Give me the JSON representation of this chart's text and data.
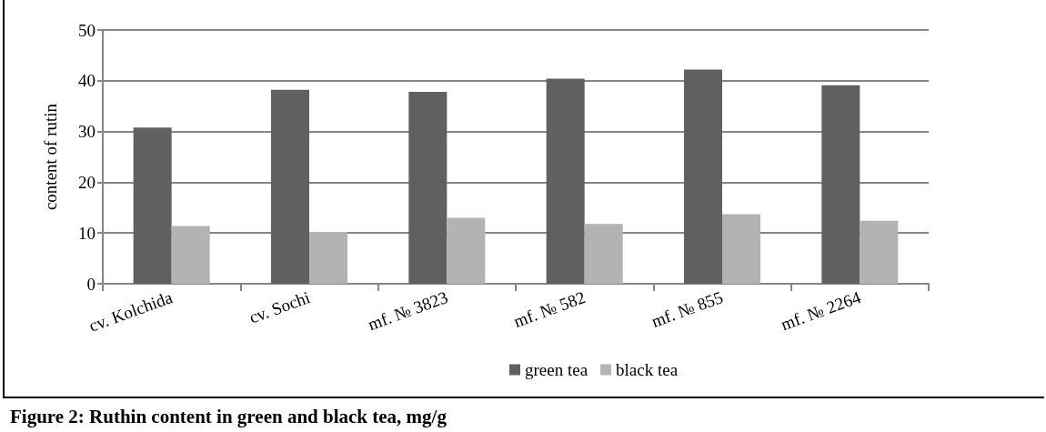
{
  "chart_data": {
    "type": "bar",
    "title": "Figure 2: Ruthin content in green and black tea, mg/g",
    "ylabel": "content of rutin",
    "categories": [
      "cv. Kolchida",
      "cv. Sochi",
      "mf. № 3823",
      "mf. № 582",
      "mf. № 855",
      "mf. № 2264"
    ],
    "series": [
      {
        "name": "green tea",
        "color": "#606060",
        "values": [
          30.8,
          38.2,
          37.8,
          40.4,
          42.2,
          39.1
        ]
      },
      {
        "name": "black tea",
        "color": "#b3b3b3",
        "values": [
          11.4,
          10.2,
          13.0,
          11.8,
          13.7,
          12.4
        ]
      }
    ],
    "ylim": [
      0,
      50
    ],
    "yticks": [
      0,
      10,
      20,
      30,
      40,
      50
    ],
    "grid": "y",
    "legend": "bottom"
  }
}
